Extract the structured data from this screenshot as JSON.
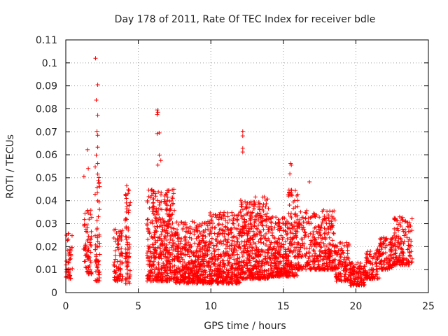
{
  "chart_data": {
    "type": "scatter",
    "title": "Day 178 of 2011, Rate Of TEC Index for receiver bdle",
    "xlabel": "GPS time / hours",
    "ylabel": "ROTI / TECUs",
    "xlim": [
      0,
      25
    ],
    "ylim": [
      0,
      0.11
    ],
    "xticks": [
      "0",
      "5",
      "10",
      "15",
      "20",
      "25"
    ],
    "yticks": [
      "0",
      "0.01",
      "0.02",
      "0.03",
      "0.04",
      "0.05",
      "0.06",
      "0.07",
      "0.08",
      "0.09",
      "0.1",
      "0.11"
    ],
    "grid": true,
    "marker": "+",
    "color": "#ff0000",
    "outliers": [
      {
        "x": 2.05,
        "y": 0.102
      },
      {
        "x": 2.2,
        "y": 0.0905
      },
      {
        "x": 2.1,
        "y": 0.0838
      },
      {
        "x": 2.2,
        "y": 0.0772
      },
      {
        "x": 2.15,
        "y": 0.0702
      },
      {
        "x": 2.2,
        "y": 0.0685
      },
      {
        "x": 2.2,
        "y": 0.0633
      },
      {
        "x": 2.1,
        "y": 0.0598
      },
      {
        "x": 2.2,
        "y": 0.0562
      },
      {
        "x": 1.5,
        "y": 0.0622
      },
      {
        "x": 1.55,
        "y": 0.054
      },
      {
        "x": 1.25,
        "y": 0.0505
      },
      {
        "x": 6.3,
        "y": 0.0795
      },
      {
        "x": 6.35,
        "y": 0.0785
      },
      {
        "x": 6.3,
        "y": 0.0775
      },
      {
        "x": 6.45,
        "y": 0.0695
      },
      {
        "x": 6.3,
        "y": 0.0692
      },
      {
        "x": 6.45,
        "y": 0.0598
      },
      {
        "x": 6.35,
        "y": 0.0555
      },
      {
        "x": 6.55,
        "y": 0.0575
      },
      {
        "x": 12.2,
        "y": 0.0702
      },
      {
        "x": 12.2,
        "y": 0.0682
      },
      {
        "x": 12.2,
        "y": 0.0628
      },
      {
        "x": 12.2,
        "y": 0.0612
      },
      {
        "x": 15.5,
        "y": 0.0562
      },
      {
        "x": 15.55,
        "y": 0.0555
      },
      {
        "x": 15.45,
        "y": 0.0517
      },
      {
        "x": 16.8,
        "y": 0.0482
      },
      {
        "x": 4.2,
        "y": 0.0465
      },
      {
        "x": 4.3,
        "y": 0.0432
      }
    ],
    "clusters": [
      {
        "x0": 0.0,
        "x1": 0.45,
        "lo": 0.006,
        "hi": 0.026,
        "n": 45
      },
      {
        "x0": 1.2,
        "x1": 1.8,
        "lo": 0.008,
        "hi": 0.036,
        "n": 70
      },
      {
        "x0": 2.0,
        "x1": 2.35,
        "lo": 0.005,
        "hi": 0.055,
        "n": 60
      },
      {
        "x0": 3.3,
        "x1": 3.95,
        "lo": 0.005,
        "hi": 0.03,
        "n": 80
      },
      {
        "x0": 4.1,
        "x1": 4.45,
        "lo": 0.004,
        "hi": 0.045,
        "n": 70
      },
      {
        "x0": 5.6,
        "x1": 7.5,
        "lo": 0.005,
        "hi": 0.045,
        "n": 420
      },
      {
        "x0": 7.5,
        "x1": 9.8,
        "lo": 0.004,
        "hi": 0.031,
        "n": 440
      },
      {
        "x0": 9.8,
        "x1": 12.0,
        "lo": 0.004,
        "hi": 0.035,
        "n": 420
      },
      {
        "x0": 12.0,
        "x1": 14.0,
        "lo": 0.006,
        "hi": 0.042,
        "n": 420
      },
      {
        "x0": 14.0,
        "x1": 15.3,
        "lo": 0.007,
        "hi": 0.033,
        "n": 240
      },
      {
        "x0": 15.3,
        "x1": 16.0,
        "lo": 0.007,
        "hi": 0.045,
        "n": 130
      },
      {
        "x0": 16.0,
        "x1": 18.6,
        "lo": 0.01,
        "hi": 0.036,
        "n": 360
      },
      {
        "x0": 18.6,
        "x1": 19.6,
        "lo": 0.005,
        "hi": 0.022,
        "n": 120
      },
      {
        "x0": 19.6,
        "x1": 20.6,
        "lo": 0.003,
        "hi": 0.013,
        "n": 110
      },
      {
        "x0": 20.6,
        "x1": 21.6,
        "lo": 0.006,
        "hi": 0.019,
        "n": 100
      },
      {
        "x0": 21.6,
        "x1": 22.6,
        "lo": 0.01,
        "hi": 0.024,
        "n": 110
      },
      {
        "x0": 22.6,
        "x1": 23.9,
        "lo": 0.012,
        "hi": 0.033,
        "n": 150
      }
    ]
  }
}
